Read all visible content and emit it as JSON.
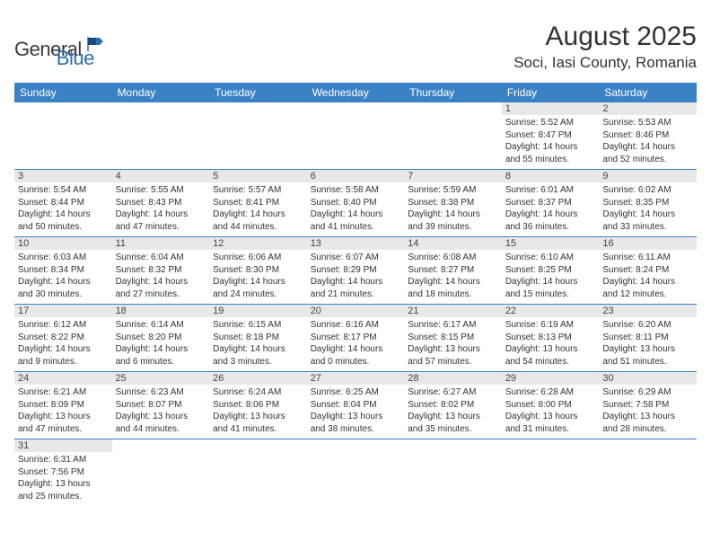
{
  "logo": {
    "text1": "General",
    "text2": "Blue"
  },
  "header": {
    "title": "August 2025",
    "location": "Soci, Iasi County, Romania"
  },
  "colors": {
    "headerBg": "#3b82c4",
    "headerText": "#ffffff",
    "dayBg": "#e8e8e8",
    "text": "#333333",
    "rowLine": "#3b82c4"
  },
  "weekdays": [
    "Sunday",
    "Monday",
    "Tuesday",
    "Wednesday",
    "Thursday",
    "Friday",
    "Saturday"
  ],
  "weeks": [
    [
      null,
      null,
      null,
      null,
      null,
      {
        "n": "1",
        "sr": "Sunrise: 5:52 AM",
        "ss": "Sunset: 8:47 PM",
        "d1": "Daylight: 14 hours",
        "d2": "and 55 minutes."
      },
      {
        "n": "2",
        "sr": "Sunrise: 5:53 AM",
        "ss": "Sunset: 8:46 PM",
        "d1": "Daylight: 14 hours",
        "d2": "and 52 minutes."
      }
    ],
    [
      {
        "n": "3",
        "sr": "Sunrise: 5:54 AM",
        "ss": "Sunset: 8:44 PM",
        "d1": "Daylight: 14 hours",
        "d2": "and 50 minutes."
      },
      {
        "n": "4",
        "sr": "Sunrise: 5:55 AM",
        "ss": "Sunset: 8:43 PM",
        "d1": "Daylight: 14 hours",
        "d2": "and 47 minutes."
      },
      {
        "n": "5",
        "sr": "Sunrise: 5:57 AM",
        "ss": "Sunset: 8:41 PM",
        "d1": "Daylight: 14 hours",
        "d2": "and 44 minutes."
      },
      {
        "n": "6",
        "sr": "Sunrise: 5:58 AM",
        "ss": "Sunset: 8:40 PM",
        "d1": "Daylight: 14 hours",
        "d2": "and 41 minutes."
      },
      {
        "n": "7",
        "sr": "Sunrise: 5:59 AM",
        "ss": "Sunset: 8:38 PM",
        "d1": "Daylight: 14 hours",
        "d2": "and 39 minutes."
      },
      {
        "n": "8",
        "sr": "Sunrise: 6:01 AM",
        "ss": "Sunset: 8:37 PM",
        "d1": "Daylight: 14 hours",
        "d2": "and 36 minutes."
      },
      {
        "n": "9",
        "sr": "Sunrise: 6:02 AM",
        "ss": "Sunset: 8:35 PM",
        "d1": "Daylight: 14 hours",
        "d2": "and 33 minutes."
      }
    ],
    [
      {
        "n": "10",
        "sr": "Sunrise: 6:03 AM",
        "ss": "Sunset: 8:34 PM",
        "d1": "Daylight: 14 hours",
        "d2": "and 30 minutes."
      },
      {
        "n": "11",
        "sr": "Sunrise: 6:04 AM",
        "ss": "Sunset: 8:32 PM",
        "d1": "Daylight: 14 hours",
        "d2": "and 27 minutes."
      },
      {
        "n": "12",
        "sr": "Sunrise: 6:06 AM",
        "ss": "Sunset: 8:30 PM",
        "d1": "Daylight: 14 hours",
        "d2": "and 24 minutes."
      },
      {
        "n": "13",
        "sr": "Sunrise: 6:07 AM",
        "ss": "Sunset: 8:29 PM",
        "d1": "Daylight: 14 hours",
        "d2": "and 21 minutes."
      },
      {
        "n": "14",
        "sr": "Sunrise: 6:08 AM",
        "ss": "Sunset: 8:27 PM",
        "d1": "Daylight: 14 hours",
        "d2": "and 18 minutes."
      },
      {
        "n": "15",
        "sr": "Sunrise: 6:10 AM",
        "ss": "Sunset: 8:25 PM",
        "d1": "Daylight: 14 hours",
        "d2": "and 15 minutes."
      },
      {
        "n": "16",
        "sr": "Sunrise: 6:11 AM",
        "ss": "Sunset: 8:24 PM",
        "d1": "Daylight: 14 hours",
        "d2": "and 12 minutes."
      }
    ],
    [
      {
        "n": "17",
        "sr": "Sunrise: 6:12 AM",
        "ss": "Sunset: 8:22 PM",
        "d1": "Daylight: 14 hours",
        "d2": "and 9 minutes."
      },
      {
        "n": "18",
        "sr": "Sunrise: 6:14 AM",
        "ss": "Sunset: 8:20 PM",
        "d1": "Daylight: 14 hours",
        "d2": "and 6 minutes."
      },
      {
        "n": "19",
        "sr": "Sunrise: 6:15 AM",
        "ss": "Sunset: 8:18 PM",
        "d1": "Daylight: 14 hours",
        "d2": "and 3 minutes."
      },
      {
        "n": "20",
        "sr": "Sunrise: 6:16 AM",
        "ss": "Sunset: 8:17 PM",
        "d1": "Daylight: 14 hours",
        "d2": "and 0 minutes."
      },
      {
        "n": "21",
        "sr": "Sunrise: 6:17 AM",
        "ss": "Sunset: 8:15 PM",
        "d1": "Daylight: 13 hours",
        "d2": "and 57 minutes."
      },
      {
        "n": "22",
        "sr": "Sunrise: 6:19 AM",
        "ss": "Sunset: 8:13 PM",
        "d1": "Daylight: 13 hours",
        "d2": "and 54 minutes."
      },
      {
        "n": "23",
        "sr": "Sunrise: 6:20 AM",
        "ss": "Sunset: 8:11 PM",
        "d1": "Daylight: 13 hours",
        "d2": "and 51 minutes."
      }
    ],
    [
      {
        "n": "24",
        "sr": "Sunrise: 6:21 AM",
        "ss": "Sunset: 8:09 PM",
        "d1": "Daylight: 13 hours",
        "d2": "and 47 minutes."
      },
      {
        "n": "25",
        "sr": "Sunrise: 6:23 AM",
        "ss": "Sunset: 8:07 PM",
        "d1": "Daylight: 13 hours",
        "d2": "and 44 minutes."
      },
      {
        "n": "26",
        "sr": "Sunrise: 6:24 AM",
        "ss": "Sunset: 8:06 PM",
        "d1": "Daylight: 13 hours",
        "d2": "and 41 minutes."
      },
      {
        "n": "27",
        "sr": "Sunrise: 6:25 AM",
        "ss": "Sunset: 8:04 PM",
        "d1": "Daylight: 13 hours",
        "d2": "and 38 minutes."
      },
      {
        "n": "28",
        "sr": "Sunrise: 6:27 AM",
        "ss": "Sunset: 8:02 PM",
        "d1": "Daylight: 13 hours",
        "d2": "and 35 minutes."
      },
      {
        "n": "29",
        "sr": "Sunrise: 6:28 AM",
        "ss": "Sunset: 8:00 PM",
        "d1": "Daylight: 13 hours",
        "d2": "and 31 minutes."
      },
      {
        "n": "30",
        "sr": "Sunrise: 6:29 AM",
        "ss": "Sunset: 7:58 PM",
        "d1": "Daylight: 13 hours",
        "d2": "and 28 minutes."
      }
    ],
    [
      {
        "n": "31",
        "sr": "Sunrise: 6:31 AM",
        "ss": "Sunset: 7:56 PM",
        "d1": "Daylight: 13 hours",
        "d2": "and 25 minutes."
      },
      null,
      null,
      null,
      null,
      null,
      null
    ]
  ]
}
